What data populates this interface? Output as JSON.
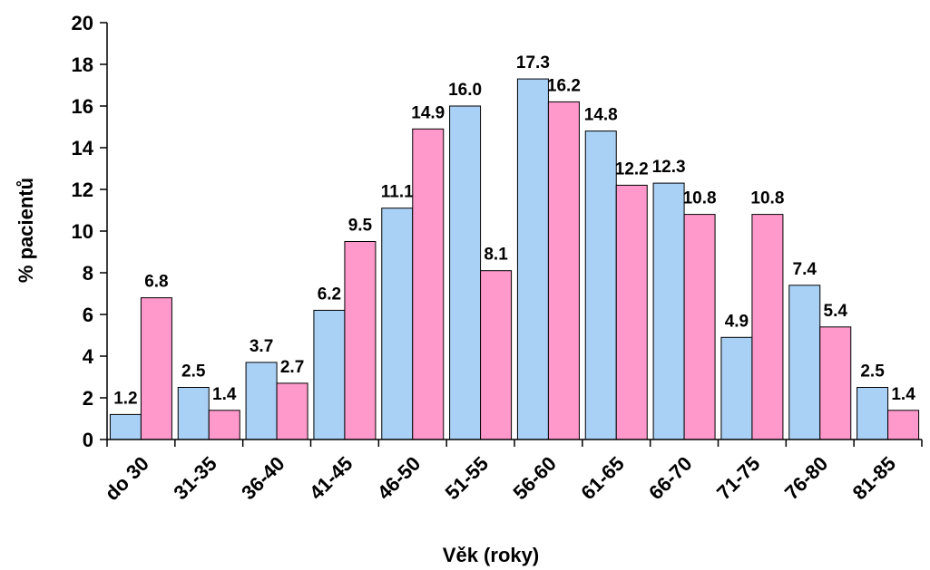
{
  "chart_data": {
    "type": "bar",
    "xlabel": "Věk (roky)",
    "ylabel": "% pacientů",
    "ylim": [
      0,
      20
    ],
    "yticks": [
      0,
      2,
      4,
      6,
      8,
      10,
      12,
      14,
      16,
      18,
      20
    ],
    "grid": false,
    "categories": [
      "do 30",
      "31-35",
      "36-40",
      "41-45",
      "46-50",
      "51-55",
      "56-60",
      "61-65",
      "66-70",
      "71-75",
      "76-80",
      "81-85"
    ],
    "series": [
      {
        "color": "#a9d0f5",
        "values": [
          1.2,
          2.5,
          3.7,
          6.2,
          11.1,
          16.0,
          17.3,
          14.8,
          12.3,
          4.9,
          7.4,
          2.5
        ],
        "labels": [
          "1.2",
          "2.5",
          "3.7",
          "6.2",
          "11.1",
          "16.0",
          "17.3",
          "14.8",
          "12.3",
          "4.9",
          "7.4",
          "2.5"
        ]
      },
      {
        "color": "#ff99cc",
        "values": [
          6.8,
          1.4,
          2.7,
          9.5,
          14.9,
          8.1,
          16.2,
          12.2,
          10.8,
          10.8,
          5.4,
          1.4
        ],
        "labels": [
          "6.8",
          "1.4",
          "2.7",
          "9.5",
          "14.9",
          "8.1",
          "16.2",
          "12.2",
          "10.8",
          "10.8",
          "5.4",
          "1.4"
        ]
      }
    ]
  }
}
